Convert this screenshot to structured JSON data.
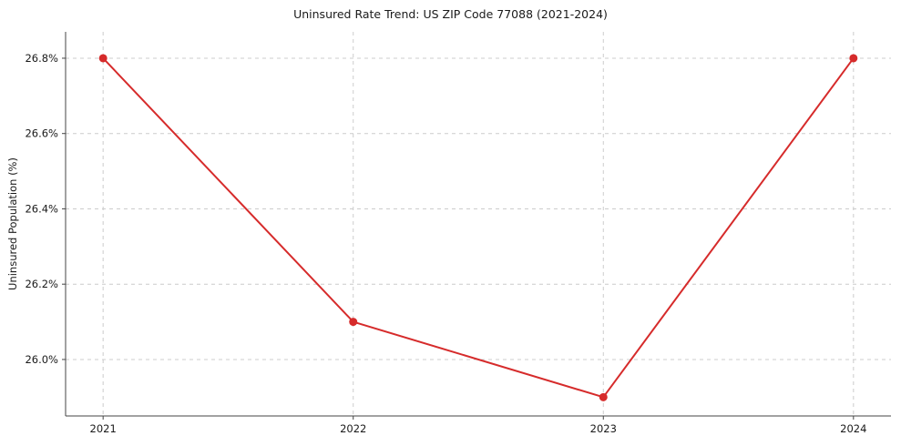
{
  "chart_data": {
    "type": "line",
    "title": "Uninsured Rate Trend: US ZIP Code 77088 (2021-2024)",
    "xlabel": "",
    "ylabel": "Uninsured Population (%)",
    "x": [
      2021,
      2022,
      2023,
      2024
    ],
    "x_tick_labels": [
      "2021",
      "2022",
      "2023",
      "2024"
    ],
    "series": [
      {
        "name": "Uninsured Rate",
        "values": [
          26.8,
          26.1,
          25.9,
          26.8
        ],
        "color": "#d62b2b"
      }
    ],
    "xlim": [
      2020.85,
      2024.15
    ],
    "ylim": [
      25.85,
      26.87
    ],
    "y_ticks": [
      26.0,
      26.2,
      26.4,
      26.6,
      26.8
    ],
    "y_tick_labels": [
      "26.0%",
      "26.2%",
      "26.4%",
      "26.6%",
      "26.8%"
    ],
    "grid": "dashed",
    "legend_position": "none",
    "marker": "circle",
    "colors": {
      "line": "#d62b2b",
      "grid": "#cccccc",
      "axis": "#444444",
      "text": "#1a1a1a",
      "background": "#ffffff"
    }
  }
}
